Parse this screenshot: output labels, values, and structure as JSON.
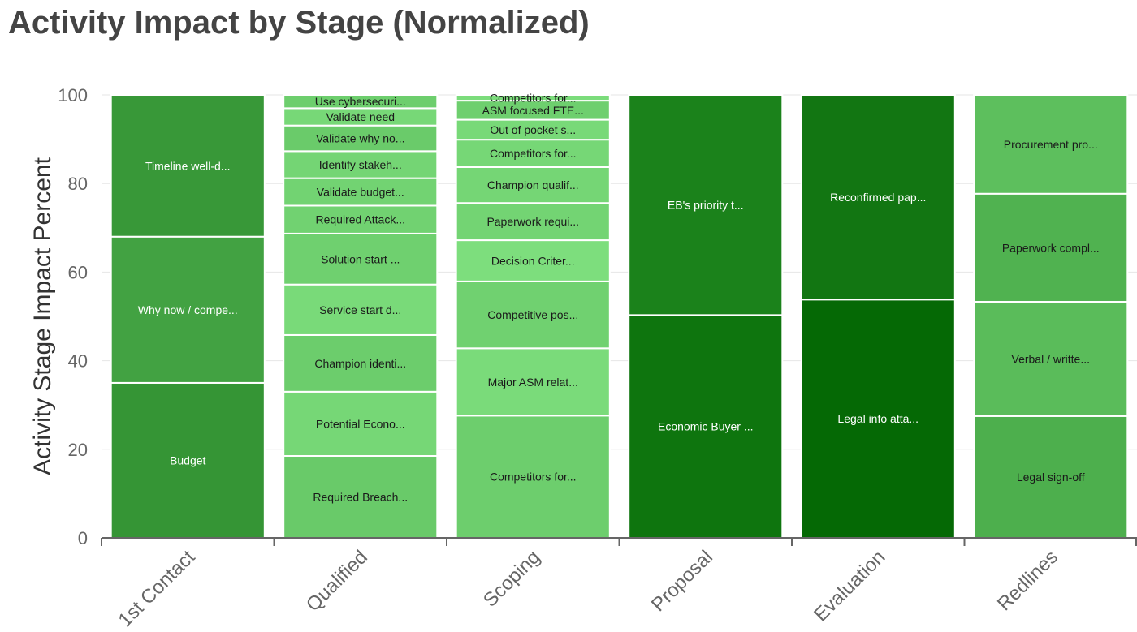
{
  "chart_data": {
    "type": "bar",
    "stacked": true,
    "normalized": true,
    "title": "Activity Impact by Stage (Normalized)",
    "xlabel": "",
    "ylabel": "Activity Stage Impact Percent",
    "ylim": [
      0,
      100
    ],
    "yticks": [
      "0",
      "20",
      "40",
      "60",
      "80",
      "100"
    ],
    "grid": true,
    "categories": [
      "1st Contact",
      "Qualified",
      "Scoping",
      "Proposal",
      "Evaluation",
      "Redlines"
    ],
    "stacks": [
      {
        "category": "1st Contact",
        "color": "#3a9a3a",
        "segments": [
          {
            "label": "Budget",
            "value": 35
          },
          {
            "label": "Why now / compe...",
            "value": 33
          },
          {
            "label": "Timeline well-d...",
            "value": 32
          }
        ]
      },
      {
        "category": "Qualified",
        "color": "#6ecf6e",
        "segments": [
          {
            "label": "Required Breach...",
            "value": 18.5
          },
          {
            "label": "Potential Econo...",
            "value": 14.5
          },
          {
            "label": "Champion identi...",
            "value": 12.8
          },
          {
            "label": "Service start d...",
            "value": 11.4
          },
          {
            "label": "Solution start ...",
            "value": 11.5
          },
          {
            "label": "Required Attack...",
            "value": 6.3
          },
          {
            "label": "Validate budget...",
            "value": 6.2
          },
          {
            "label": "Identify stakeh...",
            "value": 6.1
          },
          {
            "label": "Validate why no...",
            "value": 5.8
          },
          {
            "label": "Validate need",
            "value": 3.9
          },
          {
            "label": "Use cybersecuri...",
            "value": 3.0
          }
        ]
      },
      {
        "category": "Scoping",
        "color": "#72d372",
        "segments": [
          {
            "label": "Competitors for...",
            "value": 27.6
          },
          {
            "label": "Major ASM relat...",
            "value": 15.2
          },
          {
            "label": "Competitive pos...",
            "value": 15.1
          },
          {
            "label": "Decision Criter...",
            "value": 9.3
          },
          {
            "label": "Paperwork requi...",
            "value": 8.4
          },
          {
            "label": "Champion qualif...",
            "value": 8.1
          },
          {
            "label": "Competitors for...",
            "value": 6.2
          },
          {
            "label": "Out of pocket s...",
            "value": 4.5
          },
          {
            "label": "ASM focused FTE...",
            "value": 4.3
          },
          {
            "label": "Competitors for...",
            "value": 1.3
          }
        ]
      },
      {
        "category": "Proposal",
        "color": "#137a13",
        "segments": [
          {
            "label": "Economic Buyer ...",
            "value": 50.3
          },
          {
            "label": "EB's priority t...",
            "value": 49.7
          }
        ]
      },
      {
        "category": "Evaluation",
        "color": "#0a6e0a",
        "segments": [
          {
            "label": "Legal info atta...",
            "value": 53.8
          },
          {
            "label": "Reconfirmed pap...",
            "value": 46.2
          }
        ]
      },
      {
        "category": "Redlines",
        "color": "#52b452",
        "segments": [
          {
            "label": "Legal sign-off",
            "value": 27.5
          },
          {
            "label": "Verbal / writte...",
            "value": 25.8
          },
          {
            "label": "Paperwork compl...",
            "value": 24.4
          },
          {
            "label": "Procurement pro...",
            "value": 22.3
          }
        ]
      }
    ]
  }
}
